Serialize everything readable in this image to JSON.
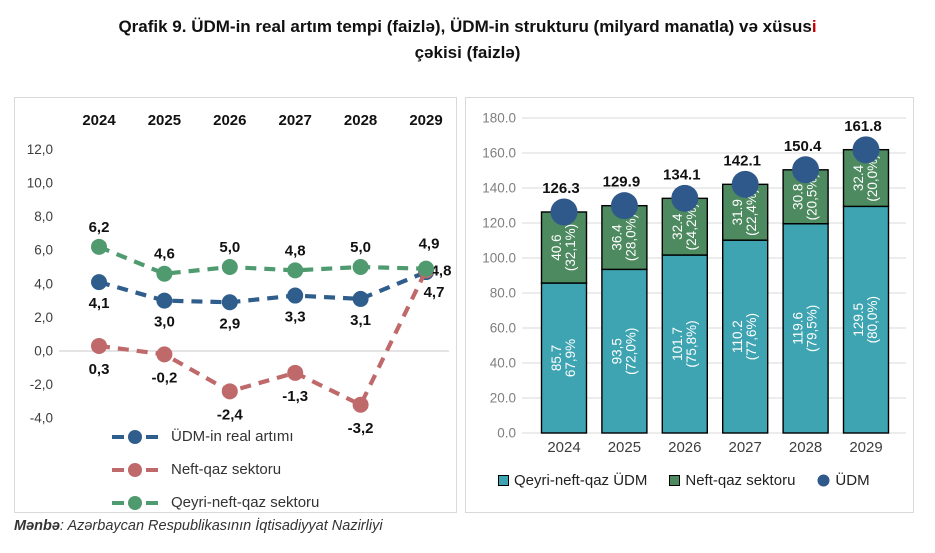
{
  "title": {
    "line1_main": "Qrafik 9. ÜDM-in real artım tempi (faizlə), ÜDM-in strukturu (milyard manatla) və xüsus",
    "line1_accent": "i",
    "line2": "çəkisi (faizlə)"
  },
  "source": {
    "label": "Mənbə",
    "text": ": Azərbaycan Respublikasının İqtisadiyyat Nazirliyi"
  },
  "colors": {
    "blue": "#2f5d8c",
    "red": "#c0696b",
    "green_line": "#4f9b6f",
    "teal_bar": "#3ea4b2",
    "green_bar": "#4d8a60",
    "circle_blue": "#2f588b",
    "grid": "#d9d9d9",
    "tick_gray": "#7f7f7f",
    "tick_dark": "#3d3d3d",
    "label_black": "#111111"
  },
  "chart_data": [
    {
      "id": "line-chart",
      "type": "line",
      "categories": [
        "2024",
        "2025",
        "2026",
        "2027",
        "2028",
        "2029"
      ],
      "ylim": [
        -4,
        12
      ],
      "ytick_step": 2,
      "ytick_labels": [
        "12,0",
        "10,0",
        "8,0",
        "6,0",
        "4,0",
        "2,0",
        "0,0",
        "-2,0",
        "-4,0"
      ],
      "grid": "zero-line-only",
      "legend_position": "bottom-inside-vertical",
      "series": [
        {
          "name": "ÜDM-in real artımı",
          "color": "#2f5d8c",
          "dashed": true,
          "values": [
            4.1,
            3.0,
            2.9,
            3.3,
            3.1,
            4.7
          ],
          "labels": [
            "4,1",
            "3,0",
            "2,9",
            "3,3",
            "3,1",
            "4,7"
          ],
          "label_side": "below"
        },
        {
          "name": "Neft-qaz sektoru",
          "color": "#c0696b",
          "dashed": true,
          "values": [
            0.3,
            -0.2,
            -2.4,
            -1.3,
            -3.2,
            4.8
          ],
          "labels": [
            "0,3",
            "-0,2",
            "-2,4",
            "-1,3",
            "-3,2",
            "4,8"
          ],
          "label_side": "below"
        },
        {
          "name": "Qeyri-neft-qaz sektoru",
          "color": "#4f9b6f",
          "dashed": true,
          "values": [
            6.2,
            4.6,
            5.0,
            4.8,
            5.0,
            4.9
          ],
          "labels": [
            "6,2",
            "4,6",
            "5,0",
            "4,8",
            "5,0",
            "4,9"
          ],
          "label_side": "above"
        }
      ]
    },
    {
      "id": "bar-chart",
      "type": "stacked-bar-with-scatter",
      "categories": [
        "2024",
        "2025",
        "2026",
        "2027",
        "2028",
        "2029"
      ],
      "ylim": [
        0,
        180
      ],
      "ytick_step": 20,
      "ytick_labels": [
        "0.0",
        "20.0",
        "40.0",
        "60.0",
        "80.0",
        "100.0",
        "120.0",
        "140.0",
        "160.0",
        "180.0"
      ],
      "grid": "horizontal",
      "legend_position": "bottom",
      "series": [
        {
          "name": "Qeyri-neft-qaz ÜDM",
          "type": "bar",
          "color": "#3ea4b2",
          "values": [
            85.7,
            93.5,
            101.7,
            110.2,
            119.6,
            129.5
          ],
          "labels": [
            [
              "85.7",
              "67,9%"
            ],
            [
              "93,5",
              "(72,0%)"
            ],
            [
              "101.7",
              "(75,8%)"
            ],
            [
              "110.2",
              "(77,6%)"
            ],
            [
              "119.6",
              "(79,5%)"
            ],
            [
              "129.5",
              "(80,0%)"
            ]
          ]
        },
        {
          "name": "Neft-qaz sektoru",
          "type": "bar",
          "color": "#4d8a60",
          "values": [
            40.6,
            36.4,
            32.4,
            31.9,
            30.8,
            32.4
          ],
          "labels": [
            [
              "40.6",
              "(32,1%)"
            ],
            [
              "36.4",
              "(28,0%)"
            ],
            [
              "32.4",
              "(24,2%)"
            ],
            [
              "31.9",
              "(22,4%)"
            ],
            [
              "30.8",
              "(20,5%)"
            ],
            [
              "32.4",
              "(20,0%)"
            ]
          ]
        },
        {
          "name": "ÜDM",
          "type": "scatter",
          "color": "#2f588b",
          "values": [
            126.3,
            129.9,
            134.1,
            142.1,
            150.4,
            161.8
          ],
          "labels": [
            "126.3",
            "129.9",
            "134.1",
            "142.1",
            "150.4",
            "161.8"
          ]
        }
      ]
    }
  ]
}
